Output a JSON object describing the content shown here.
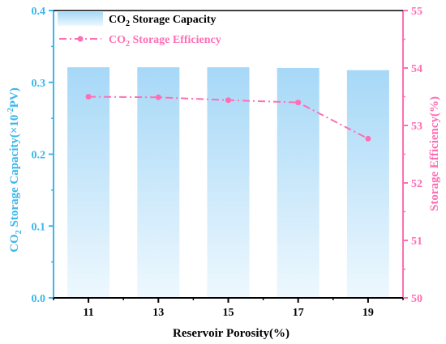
{
  "chart_data": {
    "type": "bar",
    "categories": [
      "11",
      "13",
      "15",
      "17",
      "19"
    ],
    "xlabel": "Reservoir Porosity(%)",
    "ylabel": {
      "prefix": "CO",
      "sub": "2",
      "mid": " Storage Capacity(×10",
      "sup": "-2",
      "suffix": "PV)"
    },
    "y2label": "Storage Efficiency(%)",
    "ylim": [
      0,
      0.4
    ],
    "yticks": [
      "0.0",
      "0.1",
      "0.2",
      "0.3",
      "0.4"
    ],
    "y2lim": [
      50,
      55
    ],
    "y2ticks": [
      "50",
      "51",
      "52",
      "53",
      "54",
      "55"
    ],
    "series": [
      {
        "name": {
          "prefix": "CO",
          "sub": "2",
          "suffix": " Storage Capacity"
        },
        "kind": "bar",
        "axis": "left",
        "values": [
          0.321,
          0.321,
          0.321,
          0.32,
          0.317
        ],
        "color_top": "#a6d8f7",
        "color_bottom": "#eef8fe"
      },
      {
        "name": {
          "prefix": "CO",
          "sub": "2",
          "suffix": " Storage Efficiency"
        },
        "kind": "line",
        "axis": "right",
        "values": [
          53.5,
          53.49,
          53.44,
          53.4,
          52.77
        ],
        "color": "#ff6eb4",
        "line_style": "dash-dot",
        "marker": "circle"
      }
    ],
    "left_axis_color": "#3ab6ec",
    "right_axis_color": "#ff6eb4",
    "legend_position": "top-left",
    "grid": false
  }
}
